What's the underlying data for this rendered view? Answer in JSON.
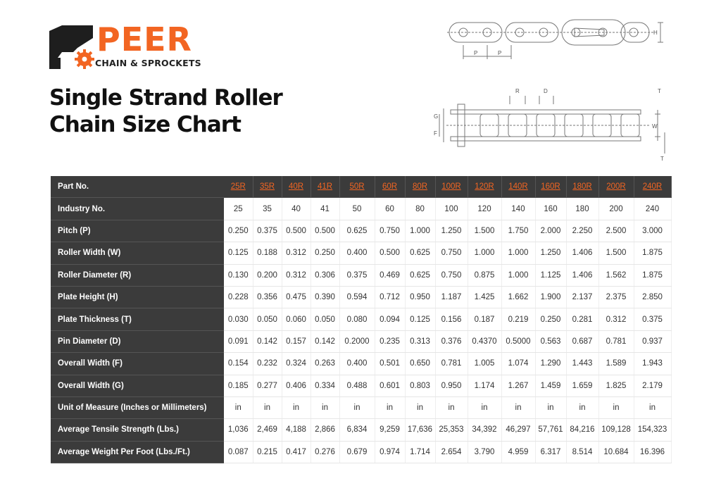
{
  "brand": {
    "name": "PEER",
    "tagline": "CHAIN & SPROCKETS",
    "accent_color": "#f26522",
    "dark_color": "#3b3b3b"
  },
  "title_lines": [
    "Single Strand Roller",
    "Chain Size Chart"
  ],
  "diagram_labels": {
    "pitch": "P",
    "height": "H",
    "roller": "R",
    "pin": "D",
    "thickness": "T",
    "width": "W",
    "overall_g": "G",
    "overall_f": "F"
  },
  "table": {
    "header_label": "Part No.",
    "part_numbers": [
      "25R",
      "35R",
      "40R",
      "41R",
      "50R",
      "60R",
      "80R",
      "100R",
      "120R",
      "140R",
      "160R",
      "180R",
      "200R",
      "240R"
    ],
    "rows": [
      {
        "label": "Industry No.",
        "values": [
          "25",
          "35",
          "40",
          "41",
          "50",
          "60",
          "80",
          "100",
          "120",
          "140",
          "160",
          "180",
          "200",
          "240"
        ]
      },
      {
        "label": "Pitch (P)",
        "values": [
          "0.250",
          "0.375",
          "0.500",
          "0.500",
          "0.625",
          "0.750",
          "1.000",
          "1.250",
          "1.500",
          "1.750",
          "2.000",
          "2.250",
          "2.500",
          "3.000"
        ]
      },
      {
        "label": "Roller Width (W)",
        "values": [
          "0.125",
          "0.188",
          "0.312",
          "0.250",
          "0.400",
          "0.500",
          "0.625",
          "0.750",
          "1.000",
          "1.000",
          "1.250",
          "1.406",
          "1.500",
          "1.875"
        ]
      },
      {
        "label": "Roller Diameter (R)",
        "values": [
          "0.130",
          "0.200",
          "0.312",
          "0.306",
          "0.375",
          "0.469",
          "0.625",
          "0.750",
          "0.875",
          "1.000",
          "1.125",
          "1.406",
          "1.562",
          "1.875"
        ]
      },
      {
        "label": "Plate Height (H)",
        "values": [
          "0.228",
          "0.356",
          "0.475",
          "0.390",
          "0.594",
          "0.712",
          "0.950",
          "1.187",
          "1.425",
          "1.662",
          "1.900",
          "2.137",
          "2.375",
          "2.850"
        ]
      },
      {
        "label": "Plate Thickness (T)",
        "values": [
          "0.030",
          "0.050",
          "0.060",
          "0.050",
          "0.080",
          "0.094",
          "0.125",
          "0.156",
          "0.187",
          "0.219",
          "0.250",
          "0.281",
          "0.312",
          "0.375"
        ]
      },
      {
        "label": "Pin Diameter (D)",
        "values": [
          "0.091",
          "0.142",
          "0.157",
          "0.142",
          "0.2000",
          "0.235",
          "0.313",
          "0.376",
          "0.4370",
          "0.5000",
          "0.563",
          "0.687",
          "0.781",
          "0.937"
        ]
      },
      {
        "label": "Overall Width (F)",
        "values": [
          "0.154",
          "0.232",
          "0.324",
          "0.263",
          "0.400",
          "0.501",
          "0.650",
          "0.781",
          "1.005",
          "1.074",
          "1.290",
          "1.443",
          "1.589",
          "1.943"
        ]
      },
      {
        "label": "Overall Width (G)",
        "values": [
          "0.185",
          "0.277",
          "0.406",
          "0.334",
          "0.488",
          "0.601",
          "0.803",
          "0.950",
          "1.174",
          "1.267",
          "1.459",
          "1.659",
          "1.825",
          "2.179"
        ]
      },
      {
        "label": "Unit of Measure (Inches or Millimeters)",
        "values": [
          "in",
          "in",
          "in",
          "in",
          "in",
          "in",
          "in",
          "in",
          "in",
          "in",
          "in",
          "in",
          "in",
          "in"
        ]
      },
      {
        "label": "Average Tensile Strength (Lbs.)",
        "values": [
          "1,036",
          "2,469",
          "4,188",
          "2,866",
          "6,834",
          "9,259",
          "17,636",
          "25,353",
          "34,392",
          "46,297",
          "57,761",
          "84,216",
          "109,128",
          "154,323"
        ]
      },
      {
        "label": "Average Weight Per Foot (Lbs./Ft.)",
        "values": [
          "0.087",
          "0.215",
          "0.417",
          "0.276",
          "0.679",
          "0.974",
          "1.714",
          "2.654",
          "3.790",
          "4.959",
          "6.317",
          "8.514",
          "10.684",
          "16.396"
        ]
      }
    ]
  }
}
